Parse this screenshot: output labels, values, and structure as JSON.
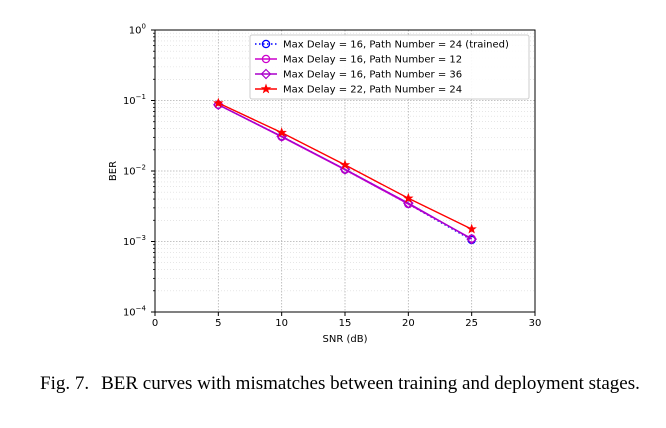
{
  "chart_data": {
    "type": "line",
    "title": "",
    "xlabel": "SNR (dB)",
    "ylabel": "BER",
    "xlim": [
      0,
      30
    ],
    "ylim": [
      0.0001,
      1
    ],
    "yscale": "log",
    "grid": true,
    "legend_position": "top-right",
    "x_ticks": [
      0,
      5,
      10,
      15,
      20,
      25,
      30
    ],
    "x_tick_labels": [
      "0",
      "5",
      "10",
      "15",
      "20",
      "25",
      "30"
    ],
    "y_ticks": [
      0.0001,
      0.001,
      0.01,
      0.1,
      1
    ],
    "y_tick_labels": [
      {
        "base": "10",
        "exp": "−4"
      },
      {
        "base": "10",
        "exp": "−3"
      },
      {
        "base": "10",
        "exp": "−2"
      },
      {
        "base": "10",
        "exp": "−1"
      },
      {
        "base": "10",
        "exp": "0"
      }
    ],
    "series": [
      {
        "name": "Max Delay = 16, Path Number = 24 (trained)",
        "color": "#0000ff",
        "linestyle": "dotted",
        "marker": "circle",
        "x": [
          5,
          10,
          15,
          20,
          25
        ],
        "y": [
          0.087,
          0.031,
          0.0105,
          0.0034,
          0.00105
        ]
      },
      {
        "name": "Max Delay = 16, Path Number = 12",
        "color": "#cc00cc",
        "linestyle": "solid",
        "marker": "circle",
        "x": [
          5,
          10,
          15,
          20,
          25
        ],
        "y": [
          0.087,
          0.0305,
          0.0104,
          0.0034,
          0.0011
        ]
      },
      {
        "name": "Max Delay = 16, Path Number = 36",
        "color": "#aa00cc",
        "linestyle": "solid",
        "marker": "diamond",
        "x": [
          5,
          10,
          15,
          20,
          25
        ],
        "y": [
          0.087,
          0.031,
          0.0106,
          0.0035,
          0.00108
        ]
      },
      {
        "name": "Max Delay = 22, Path Number = 24",
        "color": "#ff0000",
        "linestyle": "solid",
        "marker": "star",
        "x": [
          5,
          10,
          15,
          20,
          25
        ],
        "y": [
          0.092,
          0.035,
          0.0122,
          0.0041,
          0.0015
        ]
      }
    ]
  },
  "caption": {
    "label": "Fig. 7.",
    "text": "BER curves with mismatches between training and deployment stages."
  }
}
